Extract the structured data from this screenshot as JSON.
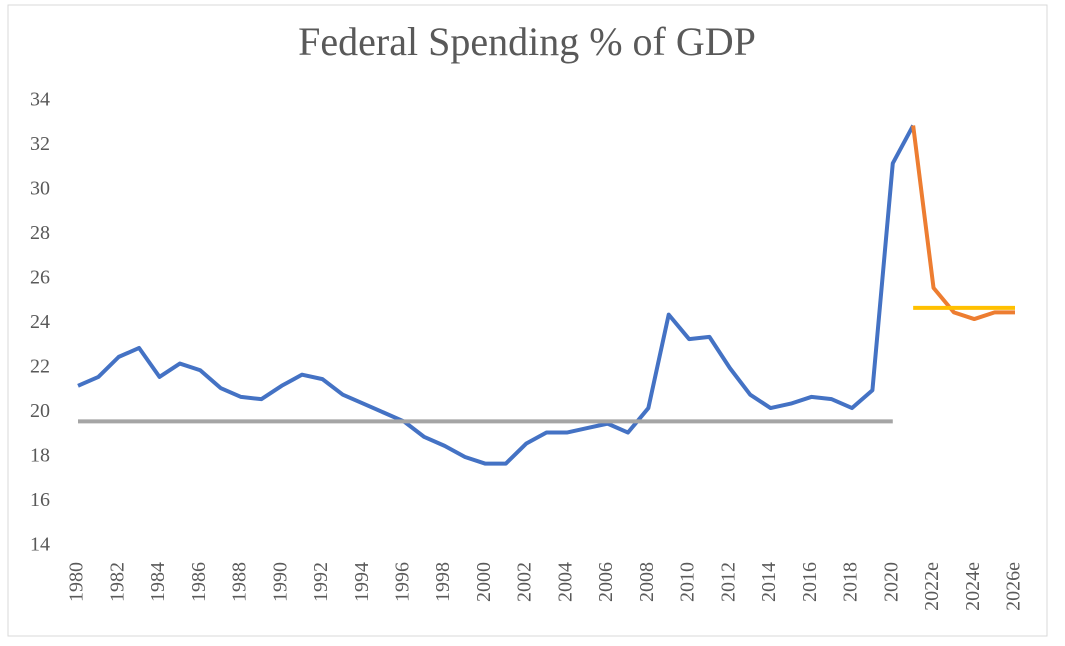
{
  "chart_data": {
    "type": "line",
    "title": "Federal Spending % of GDP",
    "categories": [
      "1980",
      null,
      "1982",
      null,
      "1984",
      null,
      "1986",
      null,
      "1988",
      null,
      "1990",
      null,
      "1992",
      null,
      "1994",
      null,
      "1996",
      null,
      "1998",
      null,
      "2000",
      null,
      "2002",
      null,
      "2004",
      null,
      "2006",
      null,
      "2008",
      null,
      "2010",
      null,
      "2012",
      null,
      "2014",
      null,
      "2016",
      null,
      "2018",
      null,
      "2020",
      null,
      "2022e",
      null,
      "2024e",
      null,
      "2026e"
    ],
    "series": [
      {
        "color": "#4472c4",
        "values": [
          21.2,
          21.6,
          22.5,
          22.9,
          21.6,
          22.2,
          21.9,
          21.1,
          20.7,
          20.6,
          21.2,
          21.7,
          21.5,
          20.8,
          20.4,
          20.0,
          19.6,
          18.9,
          18.5,
          18.0,
          17.7,
          17.7,
          18.6,
          19.1,
          19.1,
          19.3,
          19.5,
          19.1,
          20.2,
          24.4,
          23.3,
          23.4,
          22.0,
          20.8,
          20.2,
          20.4,
          20.7,
          20.6,
          20.2,
          21.0,
          31.2,
          32.9,
          null,
          null,
          null,
          null,
          null
        ]
      },
      {
        "color": "#ed7d31",
        "values": [
          null,
          null,
          null,
          null,
          null,
          null,
          null,
          null,
          null,
          null,
          null,
          null,
          null,
          null,
          null,
          null,
          null,
          null,
          null,
          null,
          null,
          null,
          null,
          null,
          null,
          null,
          null,
          null,
          null,
          null,
          null,
          null,
          null,
          null,
          null,
          null,
          null,
          null,
          null,
          null,
          null,
          32.9,
          25.6,
          24.5,
          24.2,
          24.5,
          24.5
        ]
      },
      {
        "color": "#a5a5a5",
        "values": [
          19.6,
          19.6,
          19.6,
          19.6,
          19.6,
          19.6,
          19.6,
          19.6,
          19.6,
          19.6,
          19.6,
          19.6,
          19.6,
          19.6,
          19.6,
          19.6,
          19.6,
          19.6,
          19.6,
          19.6,
          19.6,
          19.6,
          19.6,
          19.6,
          19.6,
          19.6,
          19.6,
          19.6,
          19.6,
          19.6,
          19.6,
          19.6,
          19.6,
          19.6,
          19.6,
          19.6,
          19.6,
          19.6,
          19.6,
          19.6,
          19.6,
          null,
          null,
          null,
          null,
          null,
          null
        ]
      },
      {
        "color": "#ffc000",
        "values": [
          null,
          null,
          null,
          null,
          null,
          null,
          null,
          null,
          null,
          null,
          null,
          null,
          null,
          null,
          null,
          null,
          null,
          null,
          null,
          null,
          null,
          null,
          null,
          null,
          null,
          null,
          null,
          null,
          null,
          null,
          null,
          null,
          null,
          null,
          null,
          null,
          null,
          null,
          null,
          null,
          null,
          24.7,
          24.7,
          24.7,
          24.7,
          24.7,
          24.7
        ]
      }
    ],
    "ylim": [
      14,
      34
    ],
    "yticks": [
      14,
      16,
      18,
      20,
      22,
      24,
      26,
      28,
      30,
      32,
      34
    ],
    "grid": false
  }
}
